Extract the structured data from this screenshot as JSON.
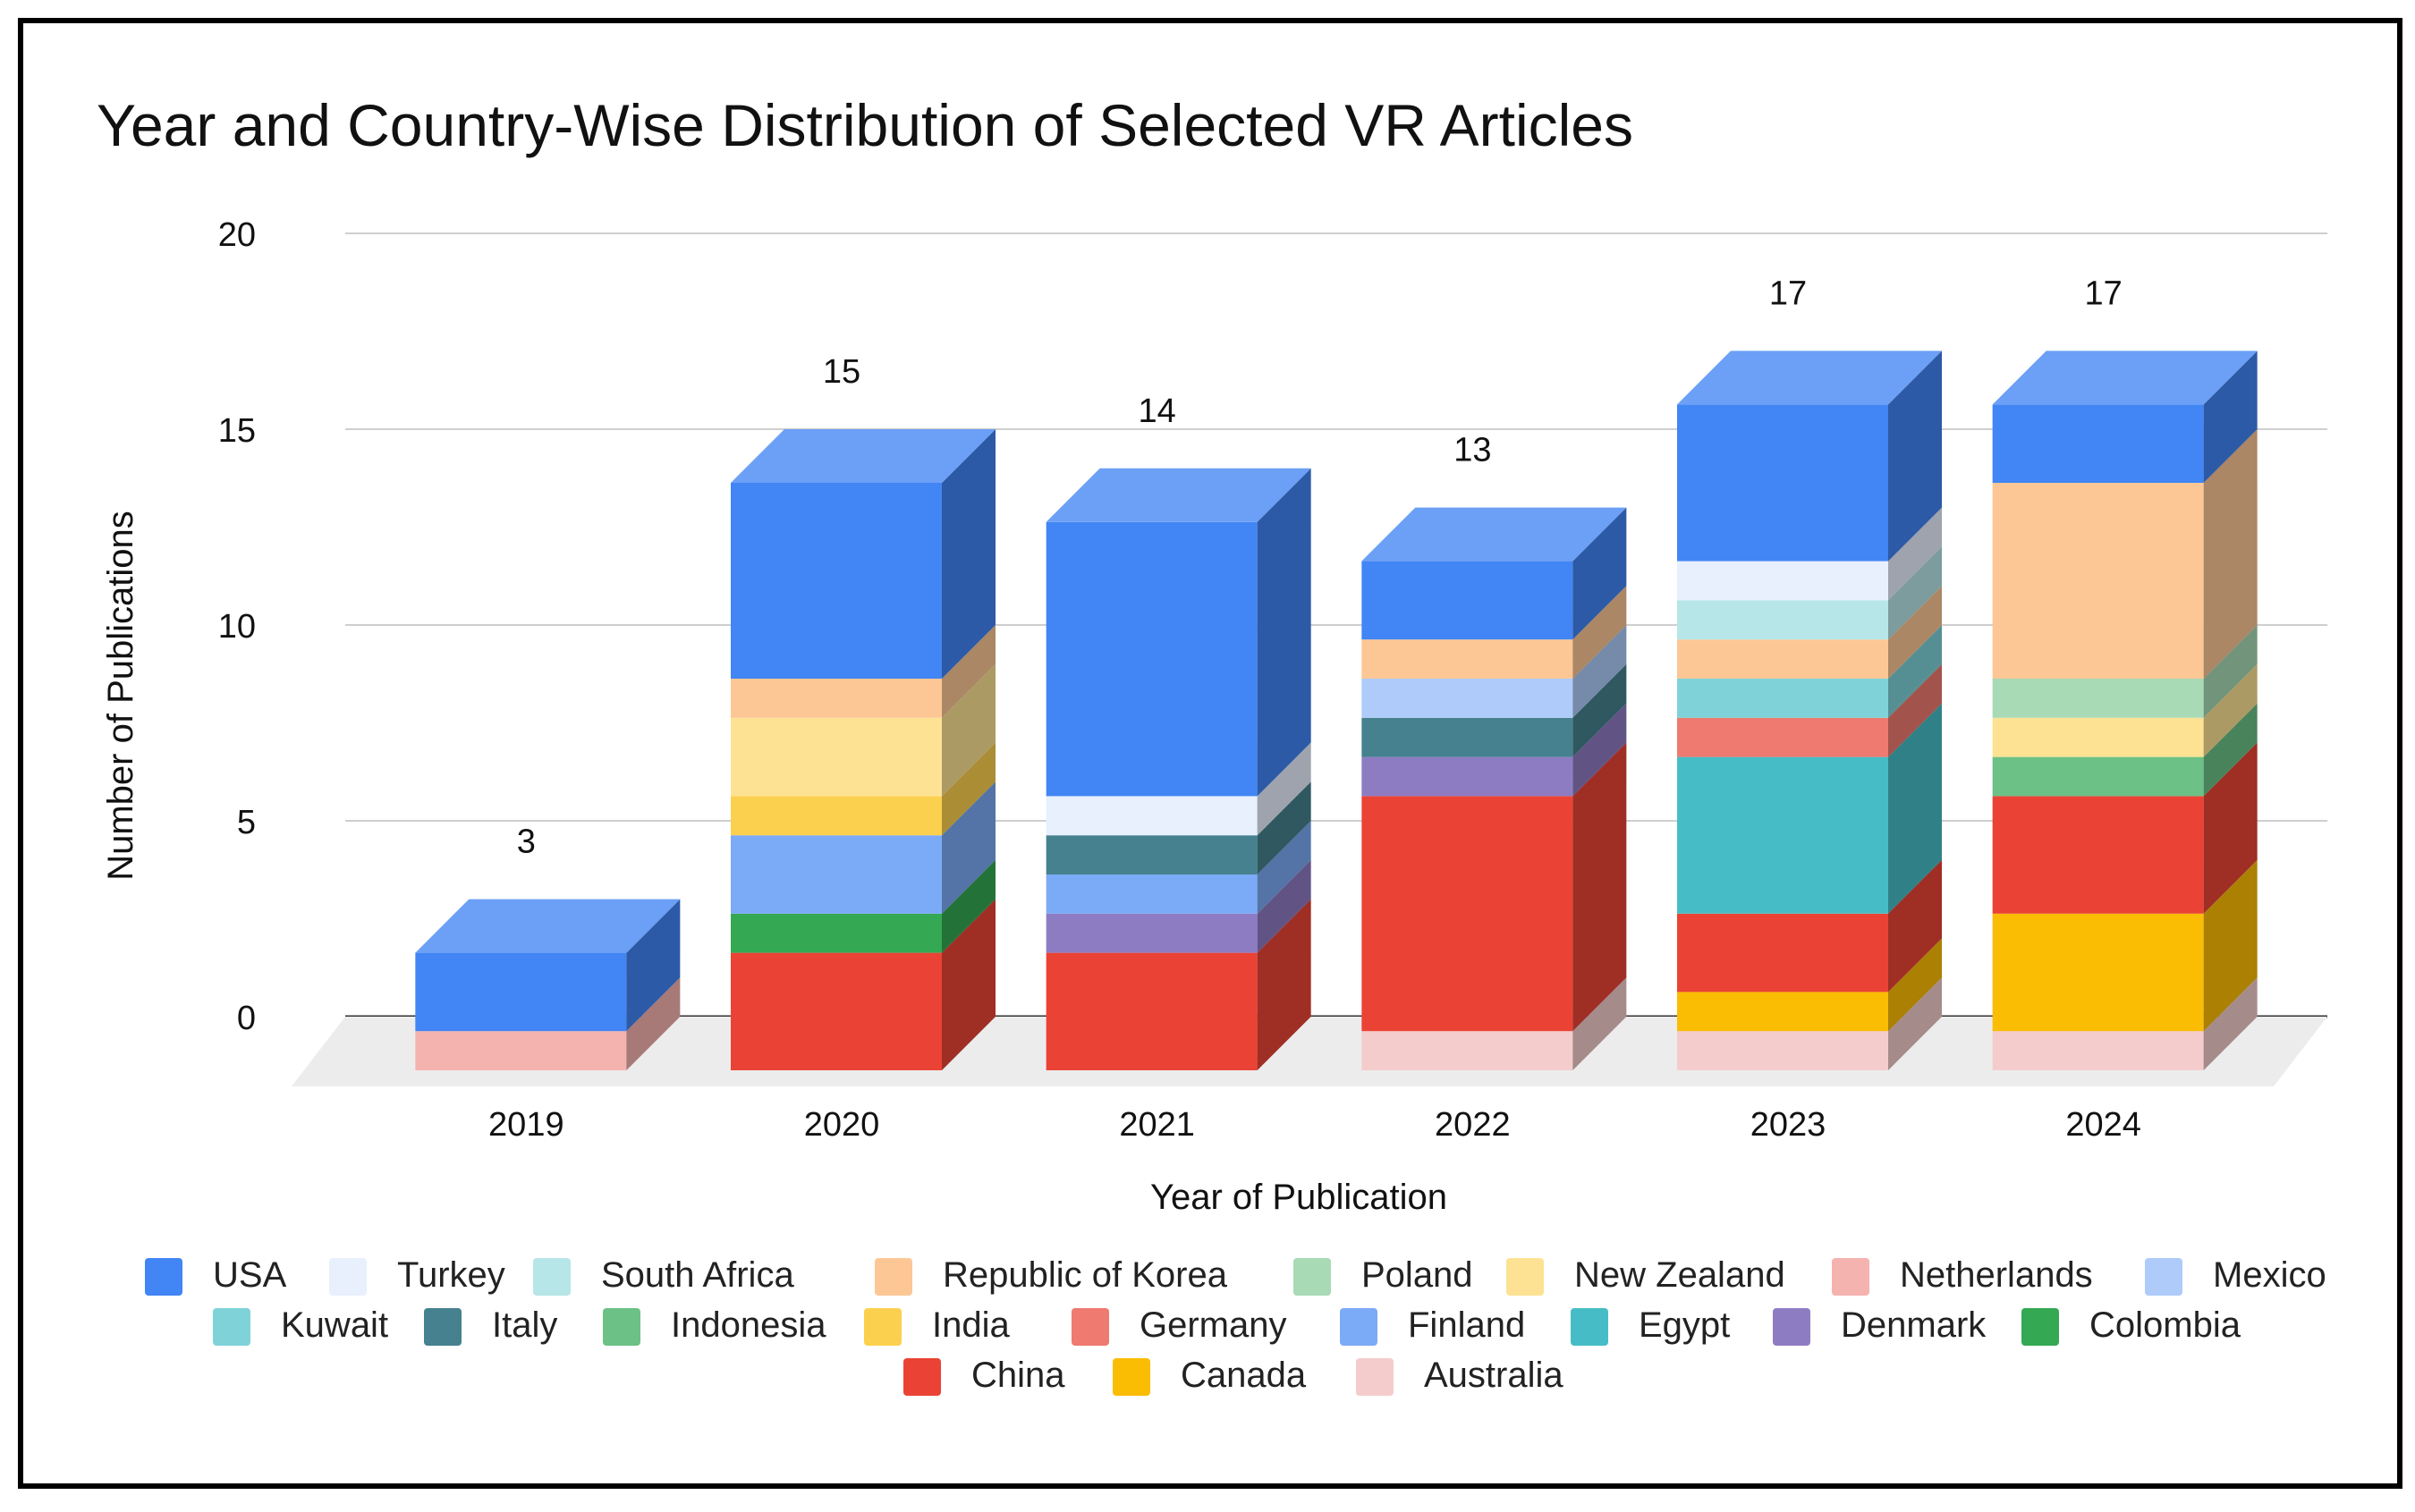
{
  "chart_data": {
    "type": "bar",
    "stacked": true,
    "style": "3d",
    "title": "Year and Country-Wise Distribution of Selected VR Articles",
    "xlabel": "Year of Publication",
    "ylabel": "Number of Publications",
    "ylim": [
      0,
      20
    ],
    "yticks": [
      "0",
      "5",
      "10",
      "15",
      "20"
    ],
    "grid": true,
    "legend_position": "bottom",
    "categories": [
      "2019",
      "2020",
      "2021",
      "2022",
      "2023",
      "2024"
    ],
    "totals": [
      3,
      15,
      14,
      13,
      17,
      17
    ],
    "stack_order": [
      "Australia",
      "Canada",
      "China",
      "Colombia",
      "Denmark",
      "Egypt",
      "Finland",
      "Germany",
      "India",
      "Indonesia",
      "Italy",
      "Kuwait",
      "Mexico",
      "Netherlands",
      "New Zealand",
      "Poland",
      "Republic of Korea",
      "South Africa",
      "Turkey",
      "USA"
    ],
    "series": [
      {
        "name": "USA",
        "color": "#4285f4",
        "values": [
          2,
          5,
          7,
          2,
          4,
          2
        ]
      },
      {
        "name": "Turkey",
        "color": "#e8f0fe",
        "values": [
          0,
          0,
          1,
          0,
          1,
          0
        ]
      },
      {
        "name": "South Africa",
        "color": "#b6e6e8",
        "values": [
          0,
          0,
          0,
          0,
          1,
          0
        ]
      },
      {
        "name": "Republic of Korea",
        "color": "#fcc795",
        "values": [
          0,
          1,
          0,
          1,
          1,
          5
        ]
      },
      {
        "name": "Poland",
        "color": "#a8dab5",
        "values": [
          0,
          0,
          0,
          0,
          0,
          1
        ]
      },
      {
        "name": "New Zealand",
        "color": "#fde293",
        "values": [
          0,
          2,
          0,
          0,
          0,
          1
        ]
      },
      {
        "name": "Netherlands",
        "color": "#f5b3b0",
        "values": [
          1,
          0,
          0,
          0,
          0,
          0
        ]
      },
      {
        "name": "Mexico",
        "color": "#aecbfa",
        "values": [
          0,
          0,
          0,
          1,
          0,
          0
        ]
      },
      {
        "name": "Kuwait",
        "color": "#7fd3d8",
        "values": [
          0,
          0,
          0,
          0,
          1,
          0
        ]
      },
      {
        "name": "Italy",
        "color": "#45818e",
        "values": [
          0,
          0,
          1,
          1,
          0,
          0
        ]
      },
      {
        "name": "Indonesia",
        "color": "#6cc186",
        "values": [
          0,
          0,
          0,
          0,
          0,
          1
        ]
      },
      {
        "name": "India",
        "color": "#fcd04f",
        "values": [
          0,
          1,
          0,
          0,
          0,
          0
        ]
      },
      {
        "name": "Germany",
        "color": "#ee7a70",
        "values": [
          0,
          0,
          0,
          0,
          1,
          0
        ]
      },
      {
        "name": "Finland",
        "color": "#7baaf7",
        "values": [
          0,
          2,
          1,
          0,
          0,
          0
        ]
      },
      {
        "name": "Egypt",
        "color": "#46bdc6",
        "values": [
          0,
          0,
          0,
          0,
          4,
          0
        ]
      },
      {
        "name": "Denmark",
        "color": "#8e7cc3",
        "values": [
          0,
          0,
          1,
          1,
          0,
          0
        ]
      },
      {
        "name": "Colombia",
        "color": "#34a853",
        "values": [
          0,
          1,
          0,
          0,
          0,
          0
        ]
      },
      {
        "name": "China",
        "color": "#ea4335",
        "values": [
          0,
          3,
          3,
          6,
          2,
          3
        ]
      },
      {
        "name": "Canada",
        "color": "#fbbc04",
        "values": [
          0,
          0,
          0,
          0,
          1,
          3
        ]
      },
      {
        "name": "Australia",
        "color": "#f4cccc",
        "values": [
          0,
          0,
          0,
          1,
          1,
          1
        ]
      }
    ]
  }
}
